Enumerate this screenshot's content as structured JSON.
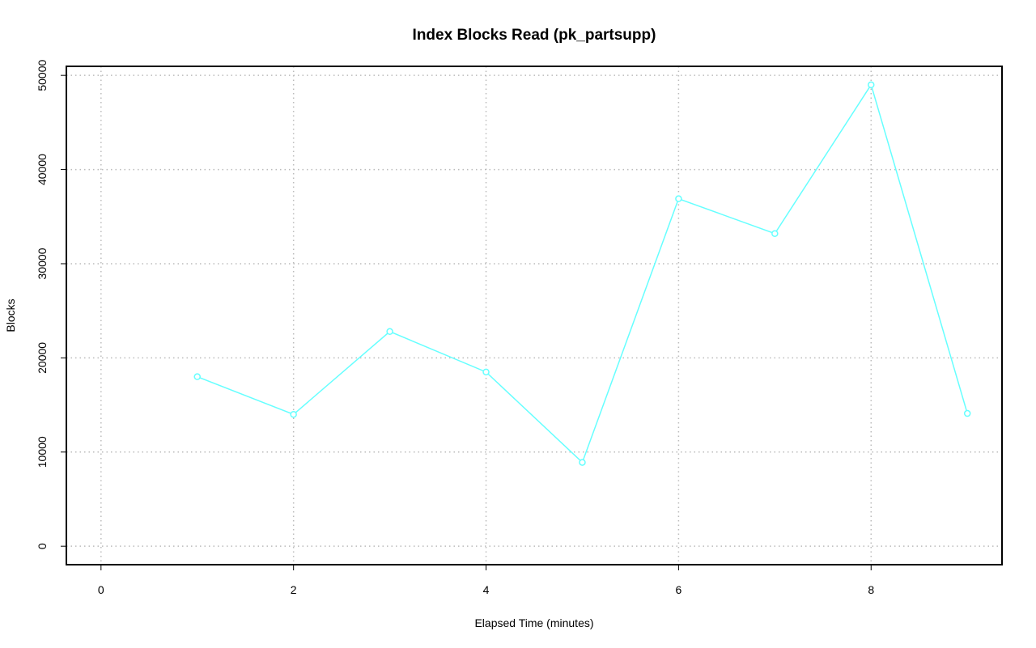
{
  "chart_data": {
    "type": "line",
    "title": "Index Blocks Read (pk_partsupp)",
    "xlabel": "Elapsed Time (minutes)",
    "ylabel": "Blocks",
    "x": [
      1,
      2,
      3,
      4,
      5,
      6,
      7,
      8,
      9
    ],
    "series": [
      {
        "color": "#66ffff",
        "values": [
          18000,
          14000,
          22800,
          18500,
          8900,
          36900,
          33200,
          49000,
          14100
        ]
      }
    ],
    "xlim": [
      -0.36,
      9.36
    ],
    "ylim": [
      -1960,
      50960
    ],
    "xticks": [
      0,
      2,
      4,
      6,
      8
    ],
    "yticks": [
      0,
      10000,
      20000,
      30000,
      40000,
      50000
    ],
    "grid": true
  }
}
